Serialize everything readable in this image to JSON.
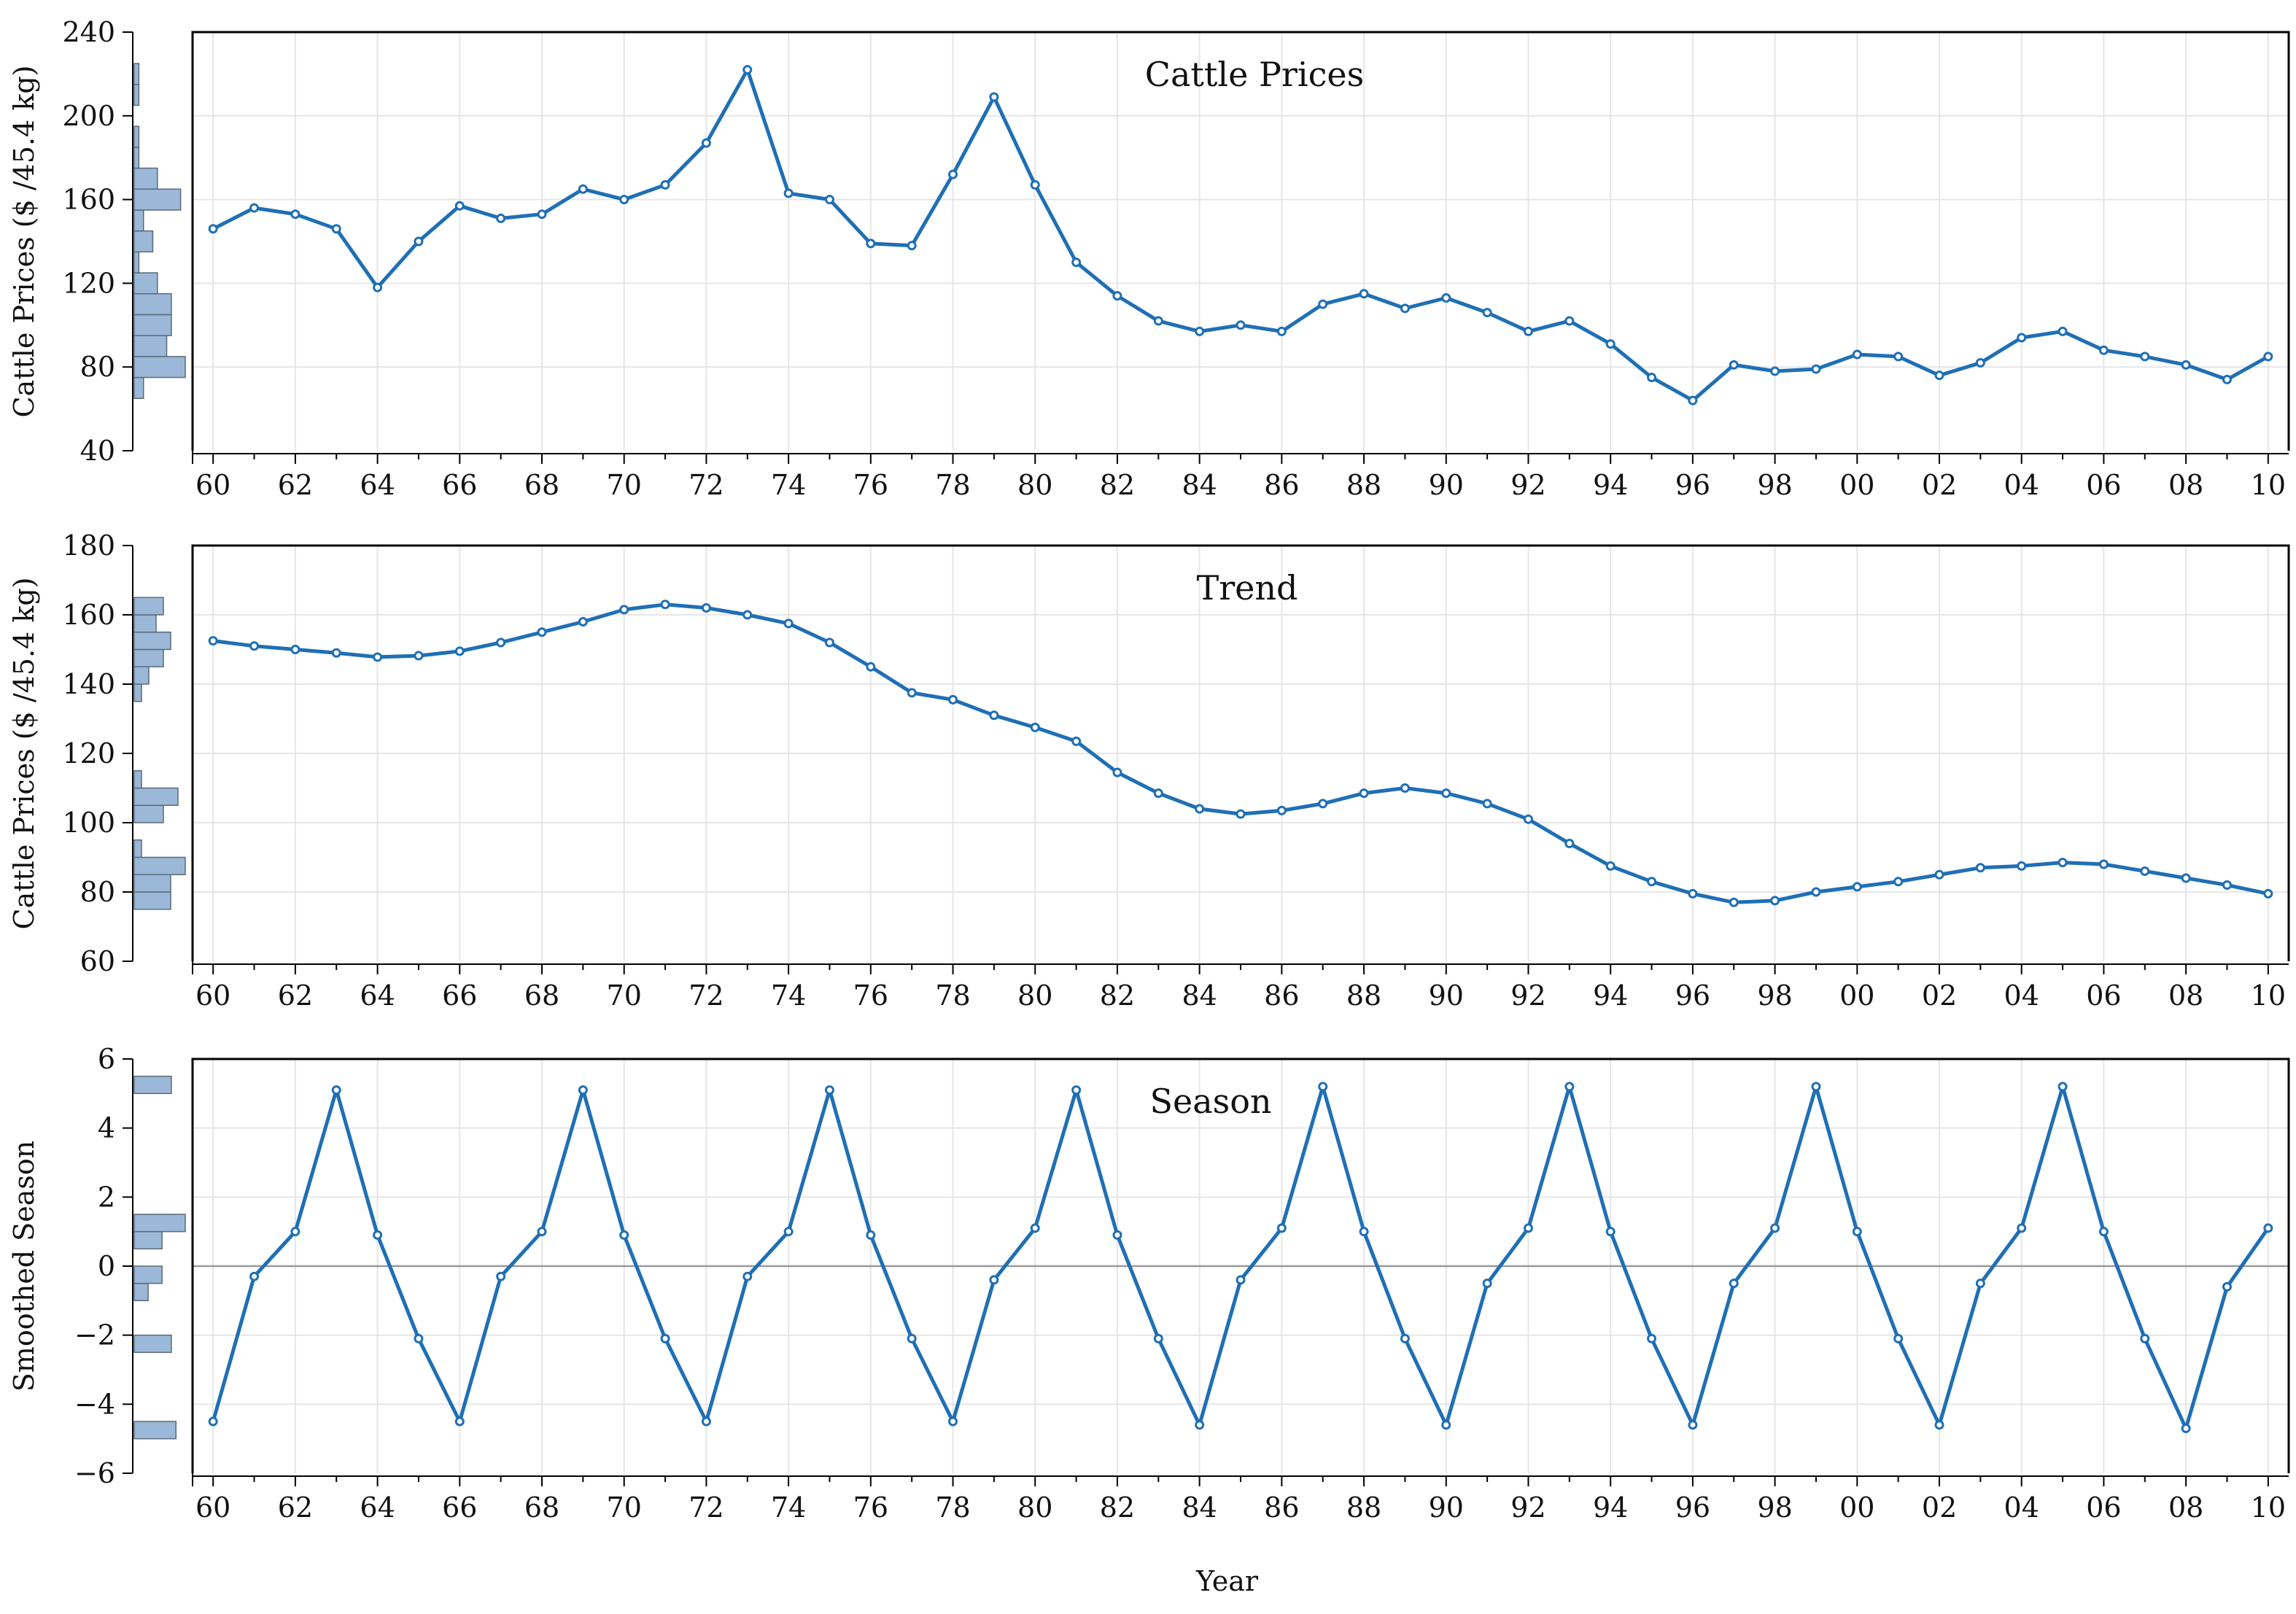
{
  "colors": {
    "line": "#1f6fb5",
    "hist": "#9bb8d8"
  },
  "xlabel": "Year",
  "chart_data": [
    {
      "type": "line",
      "title": "Cattle Prices",
      "ylabel": "Cattle Prices ($ /45.4 kg)",
      "xlabel": "Year",
      "ylim": [
        40,
        240
      ],
      "yticks": [
        40,
        80,
        120,
        160,
        200,
        240
      ],
      "xlim": [
        1959.5,
        2010.5
      ],
      "xticks": [
        "60",
        "62",
        "64",
        "66",
        "68",
        "70",
        "72",
        "74",
        "76",
        "78",
        "80",
        "82",
        "84",
        "86",
        "88",
        "90",
        "92",
        "94",
        "96",
        "98",
        "00",
        "02",
        "04",
        "06",
        "08",
        "10"
      ],
      "grid": true,
      "x": [
        1960,
        1961,
        1962,
        1963,
        1964,
        1965,
        1966,
        1967,
        1968,
        1969,
        1970,
        1971,
        1972,
        1973,
        1974,
        1975,
        1976,
        1977,
        1978,
        1979,
        1980,
        1981,
        1982,
        1983,
        1984,
        1985,
        1986,
        1987,
        1988,
        1989,
        1990,
        1991,
        1992,
        1993,
        1994,
        1995,
        1996,
        1997,
        1998,
        1999,
        2000,
        2001,
        2002,
        2003,
        2004,
        2005,
        2006,
        2007,
        2008,
        2009,
        2010
      ],
      "series": [
        {
          "values": [
            146,
            156,
            153,
            146,
            118,
            140,
            157,
            151,
            153,
            165,
            160,
            167,
            187,
            222,
            163,
            160,
            139,
            138,
            172,
            209,
            167,
            130,
            114,
            102,
            97,
            100,
            97,
            110,
            115,
            108,
            113,
            106,
            97,
            102,
            91,
            75,
            64,
            81,
            78,
            79,
            86,
            85,
            76,
            82,
            94,
            97,
            88,
            85,
            81,
            74,
            85
          ]
        }
      ],
      "marginal_histogram": {
        "bin_width": 10,
        "bins": [
          [
            65,
            75,
            2
          ],
          [
            75,
            85,
            11
          ],
          [
            85,
            95,
            7
          ],
          [
            95,
            105,
            8
          ],
          [
            105,
            115,
            8
          ],
          [
            115,
            125,
            5
          ],
          [
            125,
            135,
            1
          ],
          [
            135,
            145,
            4
          ],
          [
            145,
            155,
            2
          ],
          [
            155,
            165,
            10
          ],
          [
            165,
            175,
            5
          ],
          [
            175,
            185,
            1
          ],
          [
            185,
            195,
            1
          ],
          [
            205,
            215,
            1
          ],
          [
            215,
            225,
            1
          ]
        ]
      }
    },
    {
      "type": "line",
      "title": "Trend",
      "ylabel": "Cattle Prices ($ /45.4 kg)",
      "xlabel": "Year",
      "ylim": [
        60,
        180
      ],
      "yticks": [
        60,
        80,
        100,
        120,
        140,
        160,
        180
      ],
      "xlim": [
        1959.5,
        2010.5
      ],
      "xticks": [
        "60",
        "62",
        "64",
        "66",
        "68",
        "70",
        "72",
        "74",
        "76",
        "78",
        "80",
        "82",
        "84",
        "86",
        "88",
        "90",
        "92",
        "94",
        "96",
        "98",
        "00",
        "02",
        "04",
        "06",
        "08",
        "10"
      ],
      "grid": true,
      "x": [
        1960,
        1961,
        1962,
        1963,
        1964,
        1965,
        1966,
        1967,
        1968,
        1969,
        1970,
        1971,
        1972,
        1973,
        1974,
        1975,
        1976,
        1977,
        1978,
        1979,
        1980,
        1981,
        1982,
        1983,
        1984,
        1985,
        1986,
        1987,
        1988,
        1989,
        1990,
        1991,
        1992,
        1993,
        1994,
        1995,
        1996,
        1997,
        1998,
        1999,
        2000,
        2001,
        2002,
        2003,
        2004,
        2005,
        2006,
        2007,
        2008,
        2009,
        2010
      ],
      "series": [
        {
          "values": [
            152.5,
            151,
            150,
            149,
            147.8,
            148.2,
            149.5,
            152,
            155,
            158,
            161.5,
            163,
            162,
            160,
            157.5,
            152,
            145,
            137.5,
            135.5,
            131,
            127.5,
            123.5,
            114.5,
            108.5,
            104,
            102.5,
            103.5,
            105.5,
            108.5,
            110,
            108.5,
            105.5,
            101,
            94,
            87.5,
            83,
            79.5,
            77,
            77.5,
            80,
            81.5,
            83,
            85,
            87,
            87.5,
            88.5,
            88,
            86,
            84,
            82,
            79.5
          ]
        }
      ],
      "marginal_histogram": {
        "bin_width": 5,
        "bins": [
          [
            75,
            80,
            5
          ],
          [
            80,
            85,
            5
          ],
          [
            85,
            90,
            7
          ],
          [
            90,
            95,
            1
          ],
          [
            100,
            105,
            4
          ],
          [
            105,
            110,
            6
          ],
          [
            110,
            115,
            1
          ],
          [
            135,
            140,
            1
          ],
          [
            140,
            145,
            2
          ],
          [
            145,
            150,
            4
          ],
          [
            150,
            155,
            5
          ],
          [
            155,
            160,
            3
          ],
          [
            160,
            165,
            4
          ]
        ]
      }
    },
    {
      "type": "line",
      "title": "Season",
      "ylabel": "Smoothed Season",
      "xlabel": "Year",
      "ylim": [
        -6,
        6
      ],
      "yticks": [
        -6,
        -4,
        -2,
        0,
        2,
        4,
        6
      ],
      "ytick_labels": [
        "−6",
        "−4",
        "−2",
        "0",
        "2",
        "4",
        "6"
      ],
      "xlim": [
        1959.5,
        2010.5
      ],
      "xticks": [
        "60",
        "62",
        "64",
        "66",
        "68",
        "70",
        "72",
        "74",
        "76",
        "78",
        "80",
        "82",
        "84",
        "86",
        "88",
        "90",
        "92",
        "94",
        "96",
        "98",
        "00",
        "02",
        "04",
        "06",
        "08",
        "10"
      ],
      "grid": true,
      "zero_line": true,
      "x": [
        1960,
        1961,
        1962,
        1963,
        1964,
        1965,
        1966,
        1967,
        1968,
        1969,
        1970,
        1971,
        1972,
        1973,
        1974,
        1975,
        1976,
        1977,
        1978,
        1979,
        1980,
        1981,
        1982,
        1983,
        1984,
        1985,
        1986,
        1987,
        1988,
        1989,
        1990,
        1991,
        1992,
        1993,
        1994,
        1995,
        1996,
        1997,
        1998,
        1999,
        2000,
        2001,
        2002,
        2003,
        2004,
        2005,
        2006,
        2007,
        2008,
        2009,
        2010
      ],
      "series": [
        {
          "values": [
            -4.5,
            -0.3,
            1.0,
            5.1,
            0.9,
            -2.1,
            -4.5,
            -0.3,
            1.0,
            5.1,
            0.9,
            -2.1,
            -4.5,
            -0.3,
            1.0,
            5.1,
            0.9,
            -2.1,
            -4.5,
            -0.4,
            1.1,
            5.1,
            0.9,
            -2.1,
            -4.6,
            -0.4,
            1.1,
            5.2,
            1.0,
            -2.1,
            -4.6,
            -0.5,
            1.1,
            5.2,
            1.0,
            -2.1,
            -4.6,
            -0.5,
            1.1,
            5.2,
            1.0,
            -2.1,
            -4.6,
            -0.5,
            1.1,
            5.2,
            1.0,
            -2.1,
            -4.7,
            -0.6,
            1.1
          ]
        }
      ],
      "marginal_histogram": {
        "bin_width": 0.5,
        "bins": [
          [
            -5,
            -4.5,
            9
          ],
          [
            -2.5,
            -2,
            8
          ],
          [
            -1,
            -0.5,
            3
          ],
          [
            -0.5,
            0,
            6
          ],
          [
            0.5,
            1,
            6
          ],
          [
            1,
            1.5,
            11
          ],
          [
            5,
            5.5,
            8
          ]
        ]
      }
    }
  ]
}
